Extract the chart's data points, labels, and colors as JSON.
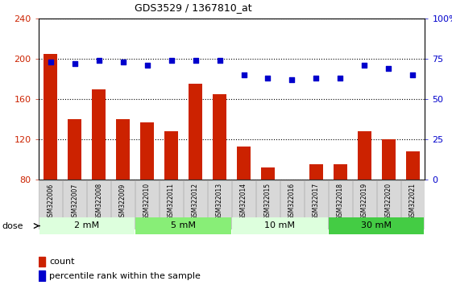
{
  "title": "GDS3529 / 1367810_at",
  "samples": [
    "GSM322006",
    "GSM322007",
    "GSM322008",
    "GSM322009",
    "GSM322010",
    "GSM322011",
    "GSM322012",
    "GSM322013",
    "GSM322014",
    "GSM322015",
    "GSM322016",
    "GSM322017",
    "GSM322018",
    "GSM322019",
    "GSM322020",
    "GSM322021"
  ],
  "bar_values": [
    205,
    140,
    170,
    140,
    137,
    128,
    175,
    165,
    113,
    92,
    80,
    95,
    95,
    128,
    120,
    108
  ],
  "dot_values": [
    73,
    72,
    74,
    73,
    71,
    74,
    74,
    74,
    65,
    63,
    62,
    63,
    63,
    71,
    69,
    65
  ],
  "bar_color": "#cc2200",
  "dot_color": "#0000cc",
  "ylim_left": [
    80,
    240
  ],
  "ylim_right": [
    0,
    100
  ],
  "yticks_left": [
    80,
    120,
    160,
    200,
    240
  ],
  "yticks_right": [
    0,
    25,
    50,
    75,
    100
  ],
  "yticklabels_right": [
    "0",
    "25",
    "50",
    "75",
    "100%"
  ],
  "dose_groups": [
    {
      "label": "2 mM",
      "start": 0,
      "end": 4,
      "color": "#ddffdd"
    },
    {
      "label": "5 mM",
      "start": 4,
      "end": 8,
      "color": "#99ee88"
    },
    {
      "label": "10 mM",
      "start": 8,
      "end": 12,
      "color": "#ddffdd"
    },
    {
      "label": "30 mM",
      "start": 12,
      "end": 16,
      "color": "#44cc44"
    }
  ],
  "dose_label": "dose",
  "legend_count": "count",
  "legend_percentile": "percentile rank within the sample",
  "tick_label_color_left": "#cc2200",
  "tick_label_color_right": "#0000cc",
  "xtick_bg_color": "#d8d8d8",
  "xtick_border_color": "#aaaaaa",
  "dose_bar_bg": "#ffffff",
  "figure_bg": "#ffffff"
}
